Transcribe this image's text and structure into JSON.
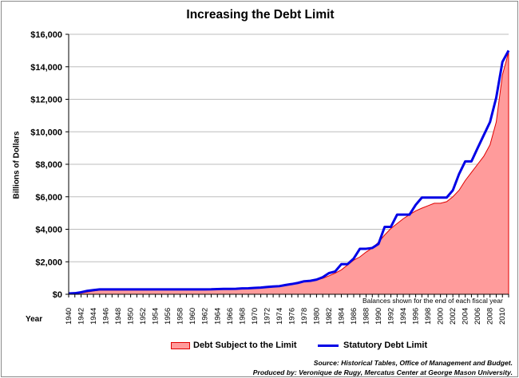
{
  "chart_data": {
    "type": "area",
    "title": "Increasing the Debt Limit",
    "xlabel": "Year",
    "ylabel": "Billions of Dollars",
    "xlim": [
      1940,
      2011
    ],
    "ylim": [
      0,
      16000
    ],
    "y_ticks": [
      0,
      2000,
      4000,
      6000,
      8000,
      10000,
      12000,
      14000,
      16000
    ],
    "y_tick_labels": [
      "$0",
      "$2,000",
      "$4,000",
      "$6,000",
      "$8,000",
      "$10,000",
      "$12,000",
      "$14,000",
      "$16,000"
    ],
    "x_ticks": [
      1940,
      1942,
      1944,
      1946,
      1948,
      1950,
      1952,
      1954,
      1956,
      1958,
      1960,
      1962,
      1964,
      1966,
      1968,
      1970,
      1972,
      1974,
      1976,
      1978,
      1980,
      1982,
      1984,
      1986,
      1988,
      1990,
      1992,
      1994,
      1996,
      1998,
      2000,
      2002,
      2004,
      2006,
      2008,
      2010
    ],
    "grid": "horizontal",
    "legend_position": "bottom",
    "annotation": "Balances shown for the end of each fiscal year",
    "x": [
      1940,
      1941,
      1942,
      1943,
      1944,
      1945,
      1946,
      1947,
      1948,
      1949,
      1950,
      1951,
      1952,
      1953,
      1954,
      1955,
      1956,
      1957,
      1958,
      1959,
      1960,
      1961,
      1962,
      1963,
      1964,
      1965,
      1966,
      1967,
      1968,
      1969,
      1970,
      1971,
      1972,
      1973,
      1974,
      1975,
      1976,
      1977,
      1978,
      1979,
      1980,
      1981,
      1982,
      1983,
      1984,
      1985,
      1986,
      1987,
      1988,
      1989,
      1990,
      1991,
      1992,
      1993,
      1994,
      1995,
      1996,
      1997,
      1998,
      1999,
      2000,
      2001,
      2002,
      2003,
      2004,
      2005,
      2006,
      2007,
      2008,
      2009,
      2010,
      2011
    ],
    "series": [
      {
        "name": "Debt Subject to the Limit",
        "kind": "area",
        "color": "#ff9b9b",
        "edge_color": "#e00000",
        "values": [
          43,
          48,
          72,
          135,
          200,
          250,
          260,
          250,
          250,
          250,
          255,
          255,
          260,
          265,
          270,
          272,
          272,
          272,
          275,
          280,
          285,
          290,
          295,
          300,
          310,
          315,
          320,
          330,
          350,
          360,
          375,
          395,
          425,
          455,
          475,
          530,
          610,
          690,
          770,
          820,
          875,
          980,
          1130,
          1300,
          1500,
          1800,
          2100,
          2300,
          2600,
          2850,
          3200,
          3650,
          4050,
          4350,
          4650,
          4900,
          5130,
          5300,
          5450,
          5600,
          5600,
          5700,
          6000,
          6400,
          7000,
          7500,
          8000,
          8500,
          9200,
          10600,
          13500,
          14900
        ]
      },
      {
        "name": "Statutory Debt Limit",
        "kind": "line",
        "color": "#0000e6",
        "values": [
          49,
          65,
          125,
          210,
          260,
          300,
          300,
          300,
          300,
          300,
          300,
          300,
          300,
          300,
          300,
          300,
          300,
          300,
          300,
          300,
          300,
          300,
          300,
          305,
          320,
          330,
          330,
          340,
          360,
          370,
          390,
          410,
          450,
          480,
          500,
          570,
          630,
          700,
          800,
          830,
          900,
          1050,
          1300,
          1400,
          1850,
          1850,
          2200,
          2800,
          2800,
          2850,
          3100,
          4150,
          4150,
          4900,
          4900,
          4900,
          5500,
          5950,
          5950,
          5950,
          5950,
          5950,
          6400,
          7400,
          8180,
          8180,
          9000,
          9800,
          10600,
          12100,
          14300,
          15000
        ]
      }
    ]
  },
  "note": "Balances shown for the end of each fiscal year",
  "source_line1": "Source: Historical Tables, Office of Management and Budget.",
  "source_line2": "Produced by: Veronique de Rugy, Mercatus Center at George Mason University."
}
